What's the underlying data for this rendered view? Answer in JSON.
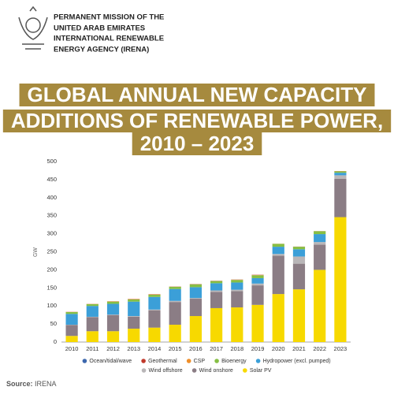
{
  "header": [
    "PERMANENT MISSION OF THE",
    "UNITED ARAB EMIRATES",
    "INTERNATIONAL RENEWABLE",
    "ENERGY AGENCY (IRENA)"
  ],
  "chart_data": {
    "type": "stacked-bar",
    "title": [
      "GLOBAL ANNUAL NEW CAPACITY",
      "ADDITIONS OF RENEWABLE POWER,",
      "2010 – 2023"
    ],
    "y_label": "GW",
    "categories": [
      "2010",
      "2011",
      "2012",
      "2013",
      "2014",
      "2015",
      "2016",
      "2017",
      "2018",
      "2019",
      "2020",
      "2021",
      "2022",
      "2023"
    ],
    "series": [
      {
        "name": "Solar PV",
        "color": "#f7d900",
        "values": [
          17,
          30,
          30,
          37,
          40,
          48,
          72,
          94,
          96,
          103,
          133,
          146,
          200,
          346
        ]
      },
      {
        "name": "Wind onshore",
        "color": "#8b7d85",
        "values": [
          30,
          39,
          45,
          33,
          48,
          63,
          48,
          45,
          45,
          54,
          106,
          71,
          70,
          106
        ]
      },
      {
        "name": "Wind offshore",
        "color": "#b9b6b8",
        "values": [
          1,
          1,
          1,
          2,
          2,
          3,
          2,
          4,
          4,
          5,
          5,
          20,
          7,
          10
        ]
      },
      {
        "name": "Hydropower (excl. pumped)",
        "color": "#3b9fd8",
        "values": [
          30,
          30,
          30,
          40,
          35,
          33,
          30,
          20,
          20,
          15,
          20,
          20,
          22,
          7
        ]
      },
      {
        "name": "Bioenergy",
        "color": "#86bf44",
        "values": [
          5,
          5,
          6,
          6,
          6,
          6,
          8,
          6,
          7,
          8,
          8,
          7,
          8,
          4
        ]
      },
      {
        "name": "CSP",
        "color": "#ef8f2a",
        "values": [
          0.4,
          0.4,
          0.8,
          0.9,
          0.9,
          0.4,
          0.1,
          0.1,
          0.6,
          0.6,
          0.2,
          0.1,
          0.2,
          0.4
        ]
      },
      {
        "name": "Geothermal",
        "color": "#c0392b",
        "values": [
          0.3,
          0.3,
          0.3,
          0.5,
          0.6,
          0.4,
          0.6,
          0.6,
          0.5,
          0.7,
          0.1,
          0.3,
          0.2,
          0.4
        ]
      },
      {
        "name": "Ocean/tidal/wave",
        "color": "#3c67ad",
        "values": [
          0,
          0,
          0,
          0,
          0,
          0,
          0,
          0,
          0,
          0,
          0,
          0,
          0,
          0
        ]
      }
    ],
    "ylim": [
      0,
      500
    ],
    "yticks": [
      0,
      50,
      100,
      150,
      200,
      250,
      300,
      350,
      400,
      450,
      500
    ],
    "grid": false
  },
  "source": {
    "label": "Source:",
    "text": "IRENA"
  }
}
